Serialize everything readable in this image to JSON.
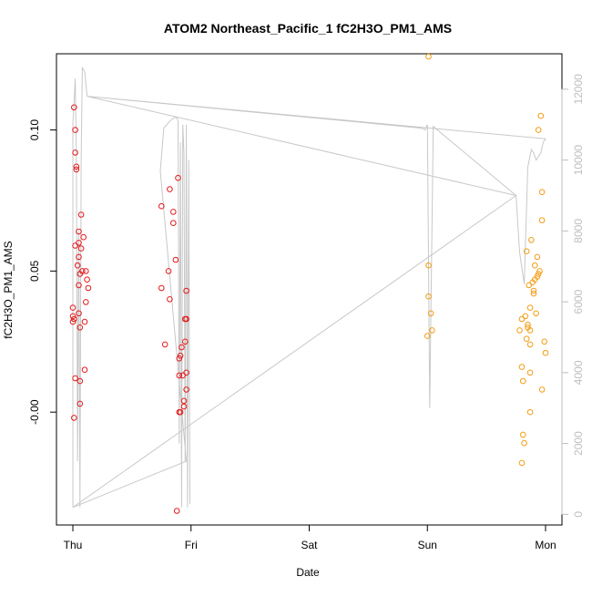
{
  "chart_data": {
    "type": "scatter",
    "title": "ATOM2 Northeast_Pacific_1 fC2H3O_PM1_AMS",
    "xlabel": "Date",
    "ylabel": "fC2H3O_PM1_AMS",
    "x_ticks": [
      "Thu",
      "Fri",
      "Sat",
      "Sun",
      "Mon"
    ],
    "x_range_days": [
      -0.1,
      4.1
    ],
    "ylim": [
      -0.04,
      0.127
    ],
    "y_ticks": [
      "-0.00",
      "0.05",
      "0.10"
    ],
    "y_tick_values": [
      0.0,
      0.05,
      0.1
    ],
    "y2_ticks": [
      "0",
      "2000",
      "4000",
      "6000",
      "8000",
      "10000",
      "12000"
    ],
    "y2_tick_values": [
      0,
      2000,
      4000,
      6000,
      8000,
      10000,
      12000
    ],
    "y2lim": [
      -300,
      13000
    ],
    "grid": false,
    "colors": {
      "series_1": "#e41a1c",
      "series_2": "#f39c12",
      "secondary_line": "#c8c8c8",
      "axis_right": "#bebebe"
    },
    "series": [
      {
        "color": "#e41a1c",
        "points": [
          [
            0.01,
            0.108
          ],
          [
            0.02,
            0.1
          ],
          [
            0.02,
            0.092
          ],
          [
            0.03,
            0.087
          ],
          [
            0.03,
            0.086
          ],
          [
            0.07,
            0.07
          ],
          [
            0.05,
            0.064
          ],
          [
            0.09,
            0.062
          ],
          [
            0.05,
            0.06
          ],
          [
            0.02,
            0.059
          ],
          [
            0.07,
            0.058
          ],
          [
            0.05,
            0.055
          ],
          [
            0.04,
            0.052
          ],
          [
            0.11,
            0.05
          ],
          [
            0.08,
            0.05
          ],
          [
            0.06,
            0.049
          ],
          [
            0.12,
            0.047
          ],
          [
            0.05,
            0.045
          ],
          [
            0.13,
            0.044
          ],
          [
            0.11,
            0.039
          ],
          [
            0.0,
            0.037
          ],
          [
            0.05,
            0.035
          ],
          [
            0.0,
            0.034
          ],
          [
            0.01,
            0.033
          ],
          [
            0.0,
            0.032
          ],
          [
            0.1,
            0.032
          ],
          [
            0.06,
            0.03
          ],
          [
            0.1,
            0.015
          ],
          [
            0.02,
            0.012
          ],
          [
            0.06,
            0.011
          ],
          [
            0.06,
            0.003
          ],
          [
            0.01,
            -0.002
          ],
          [
            0.75,
            0.073
          ],
          [
            0.89,
            0.083
          ],
          [
            0.82,
            0.079
          ],
          [
            0.85,
            0.071
          ],
          [
            0.85,
            0.067
          ],
          [
            0.87,
            0.054
          ],
          [
            0.81,
            0.05
          ],
          [
            0.75,
            0.044
          ],
          [
            0.96,
            0.043
          ],
          [
            0.82,
            0.04
          ],
          [
            0.95,
            0.033
          ],
          [
            0.96,
            0.033
          ],
          [
            0.95,
            0.025
          ],
          [
            0.78,
            0.024
          ],
          [
            0.92,
            0.023
          ],
          [
            0.91,
            0.02
          ],
          [
            0.9,
            0.019
          ],
          [
            0.96,
            0.014
          ],
          [
            0.9,
            0.013
          ],
          [
            0.93,
            0.013
          ],
          [
            0.96,
            0.008
          ],
          [
            0.94,
            0.004
          ],
          [
            0.94,
            0.002
          ],
          [
            0.91,
            0.0
          ],
          [
            0.9,
            0.0
          ],
          [
            0.88,
            -0.035
          ]
        ]
      },
      {
        "color": "#f39c12",
        "points": [
          [
            3.01,
            0.126
          ],
          [
            3.01,
            0.052
          ],
          [
            3.01,
            0.041
          ],
          [
            3.03,
            0.035
          ],
          [
            3.04,
            0.029
          ],
          [
            3.0,
            0.027
          ],
          [
            3.96,
            0.105
          ],
          [
            3.94,
            0.1
          ],
          [
            3.97,
            0.078
          ],
          [
            3.97,
            0.068
          ],
          [
            3.88,
            0.061
          ],
          [
            3.84,
            0.057
          ],
          [
            3.93,
            0.055
          ],
          [
            3.91,
            0.052
          ],
          [
            3.95,
            0.05
          ],
          [
            3.94,
            0.049
          ],
          [
            3.93,
            0.048
          ],
          [
            3.91,
            0.047
          ],
          [
            3.89,
            0.046
          ],
          [
            3.86,
            0.045
          ],
          [
            3.9,
            0.043
          ],
          [
            3.9,
            0.042
          ],
          [
            3.87,
            0.037
          ],
          [
            3.92,
            0.035
          ],
          [
            3.83,
            0.034
          ],
          [
            3.8,
            0.033
          ],
          [
            3.85,
            0.031
          ],
          [
            3.85,
            0.03
          ],
          [
            3.87,
            0.029
          ],
          [
            3.78,
            0.029
          ],
          [
            3.84,
            0.026
          ],
          [
            3.99,
            0.025
          ],
          [
            3.87,
            0.024
          ],
          [
            4.0,
            0.021
          ],
          [
            3.8,
            0.016
          ],
          [
            3.87,
            0.014
          ],
          [
            3.81,
            0.011
          ],
          [
            3.97,
            0.008
          ],
          [
            3.87,
            0.0
          ],
          [
            3.81,
            -0.008
          ],
          [
            3.82,
            -0.011
          ],
          [
            3.8,
            -0.018
          ]
        ]
      }
    ],
    "secondary_series": {
      "axis": "right",
      "color": "#c8c8c8",
      "points": [
        [
          0.0,
          200
        ],
        [
          0.0,
          11000
        ],
        [
          0.02,
          12300
        ],
        [
          0.03,
          10000
        ],
        [
          0.04,
          1500
        ],
        [
          0.05,
          8000
        ],
        [
          0.06,
          200
        ],
        [
          0.07,
          10000
        ],
        [
          0.08,
          12600
        ],
        [
          0.1,
          12500
        ],
        [
          0.12,
          11800
        ],
        [
          2.95,
          10900
        ],
        [
          2.98,
          10850
        ],
        [
          3.0,
          11000
        ],
        [
          3.02,
          3000
        ],
        [
          3.05,
          10950
        ],
        [
          3.75,
          9000
        ],
        [
          3.78,
          7400
        ],
        [
          3.82,
          6500
        ],
        [
          3.85,
          9800
        ],
        [
          3.88,
          10300
        ],
        [
          3.9,
          10200
        ],
        [
          3.92,
          10000
        ],
        [
          3.94,
          10100
        ],
        [
          3.96,
          10200
        ],
        [
          3.98,
          10500
        ],
        [
          4.0,
          10600
        ],
        [
          0.12,
          11800
        ],
        [
          3.75,
          9000
        ],
        [
          0.0,
          200
        ],
        [
          0.96,
          1500
        ],
        [
          0.74,
          9700
        ],
        [
          0.77,
          10900
        ],
        [
          0.82,
          11100
        ],
        [
          0.86,
          11200
        ],
        [
          0.88,
          11200
        ],
        [
          0.89,
          11100
        ],
        [
          0.9,
          2000
        ],
        [
          0.91,
          10500
        ],
        [
          0.92,
          200
        ],
        [
          0.93,
          11000
        ],
        [
          0.94,
          10200
        ],
        [
          0.95,
          1500
        ],
        [
          0.96,
          11000
        ],
        [
          0.97,
          200
        ],
        [
          0.98,
          10000
        ],
        [
          0.99,
          300
        ]
      ]
    }
  }
}
